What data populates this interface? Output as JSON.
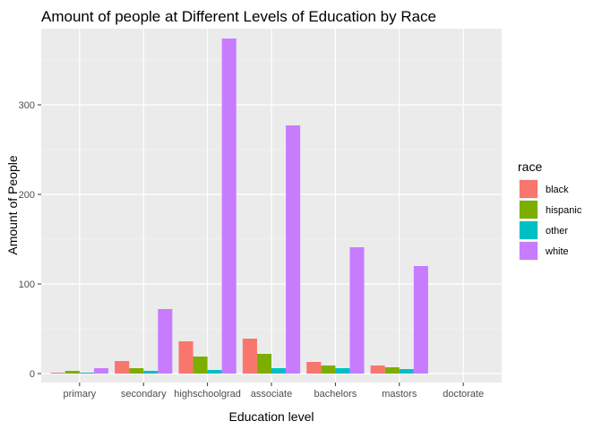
{
  "chart_data": {
    "type": "bar",
    "title": "Amount of people at Different Levels of Education by Race",
    "xlabel": "Education level",
    "ylabel": "Amount of People",
    "categories": [
      "primary",
      "secondary",
      "highschoolgrad",
      "associate",
      "bachelors",
      "mastors",
      "doctorate"
    ],
    "ylim": [
      -10,
      385
    ],
    "yticks": [
      0,
      100,
      200,
      300
    ],
    "grid": true,
    "legend_position": "right",
    "legend_title": "race",
    "series": [
      {
        "name": "black",
        "color": "#F8766D",
        "values": [
          1,
          14,
          36,
          39,
          13,
          9,
          0
        ]
      },
      {
        "name": "hispanic",
        "color": "#7CAE00",
        "values": [
          3,
          6,
          19,
          22,
          9,
          7,
          0
        ]
      },
      {
        "name": "other",
        "color": "#00BFC4",
        "values": [
          1,
          3,
          4,
          6,
          6,
          5,
          0
        ]
      },
      {
        "name": "white",
        "color": "#C77CFF",
        "values": [
          6,
          72,
          374,
          277,
          141,
          120,
          0
        ]
      }
    ]
  }
}
